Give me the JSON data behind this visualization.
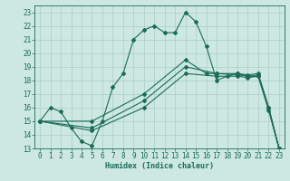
{
  "xlabel": "Humidex (Indice chaleur)",
  "bg_color": "#cce8e0",
  "line_color": "#1a6b5a",
  "grid_color": "#aacccc",
  "xlim": [
    -0.5,
    23.5
  ],
  "ylim": [
    13,
    23.5
  ],
  "xticks": [
    0,
    1,
    2,
    3,
    4,
    5,
    6,
    7,
    8,
    9,
    10,
    11,
    12,
    13,
    14,
    15,
    16,
    17,
    18,
    19,
    20,
    21,
    22,
    23
  ],
  "yticks": [
    13,
    14,
    15,
    16,
    17,
    18,
    19,
    20,
    21,
    22,
    23
  ],
  "curves": [
    {
      "x": [
        0,
        1,
        2,
        3,
        4,
        5,
        6,
        7,
        8,
        9,
        10,
        11,
        12,
        13,
        14,
        15,
        16,
        17,
        18,
        19,
        20,
        21,
        22,
        23
      ],
      "y": [
        15,
        16,
        15.7,
        14.5,
        13.5,
        13.2,
        15.0,
        17.5,
        18.5,
        21.0,
        21.7,
        22.0,
        21.5,
        21.5,
        23.0,
        22.3,
        20.5,
        18.0,
        18.3,
        18.5,
        18.3,
        18.3,
        16.0,
        13.0
      ]
    },
    {
      "x": [
        0,
        5,
        10,
        14,
        17,
        19,
        20,
        21,
        22,
        23
      ],
      "y": [
        15,
        14.3,
        16.0,
        18.5,
        18.3,
        18.3,
        18.2,
        18.3,
        15.8,
        13.0
      ]
    },
    {
      "x": [
        0,
        5,
        10,
        14,
        17,
        19,
        20,
        21,
        22,
        23
      ],
      "y": [
        15,
        14.5,
        16.5,
        19.0,
        18.5,
        18.4,
        18.3,
        18.4,
        16.0,
        13.0
      ]
    },
    {
      "x": [
        0,
        5,
        10,
        14,
        16,
        17,
        19,
        20,
        21,
        22,
        23
      ],
      "y": [
        15,
        15.0,
        17.0,
        19.5,
        18.5,
        18.5,
        18.5,
        18.4,
        18.5,
        16.0,
        13.0
      ]
    }
  ]
}
